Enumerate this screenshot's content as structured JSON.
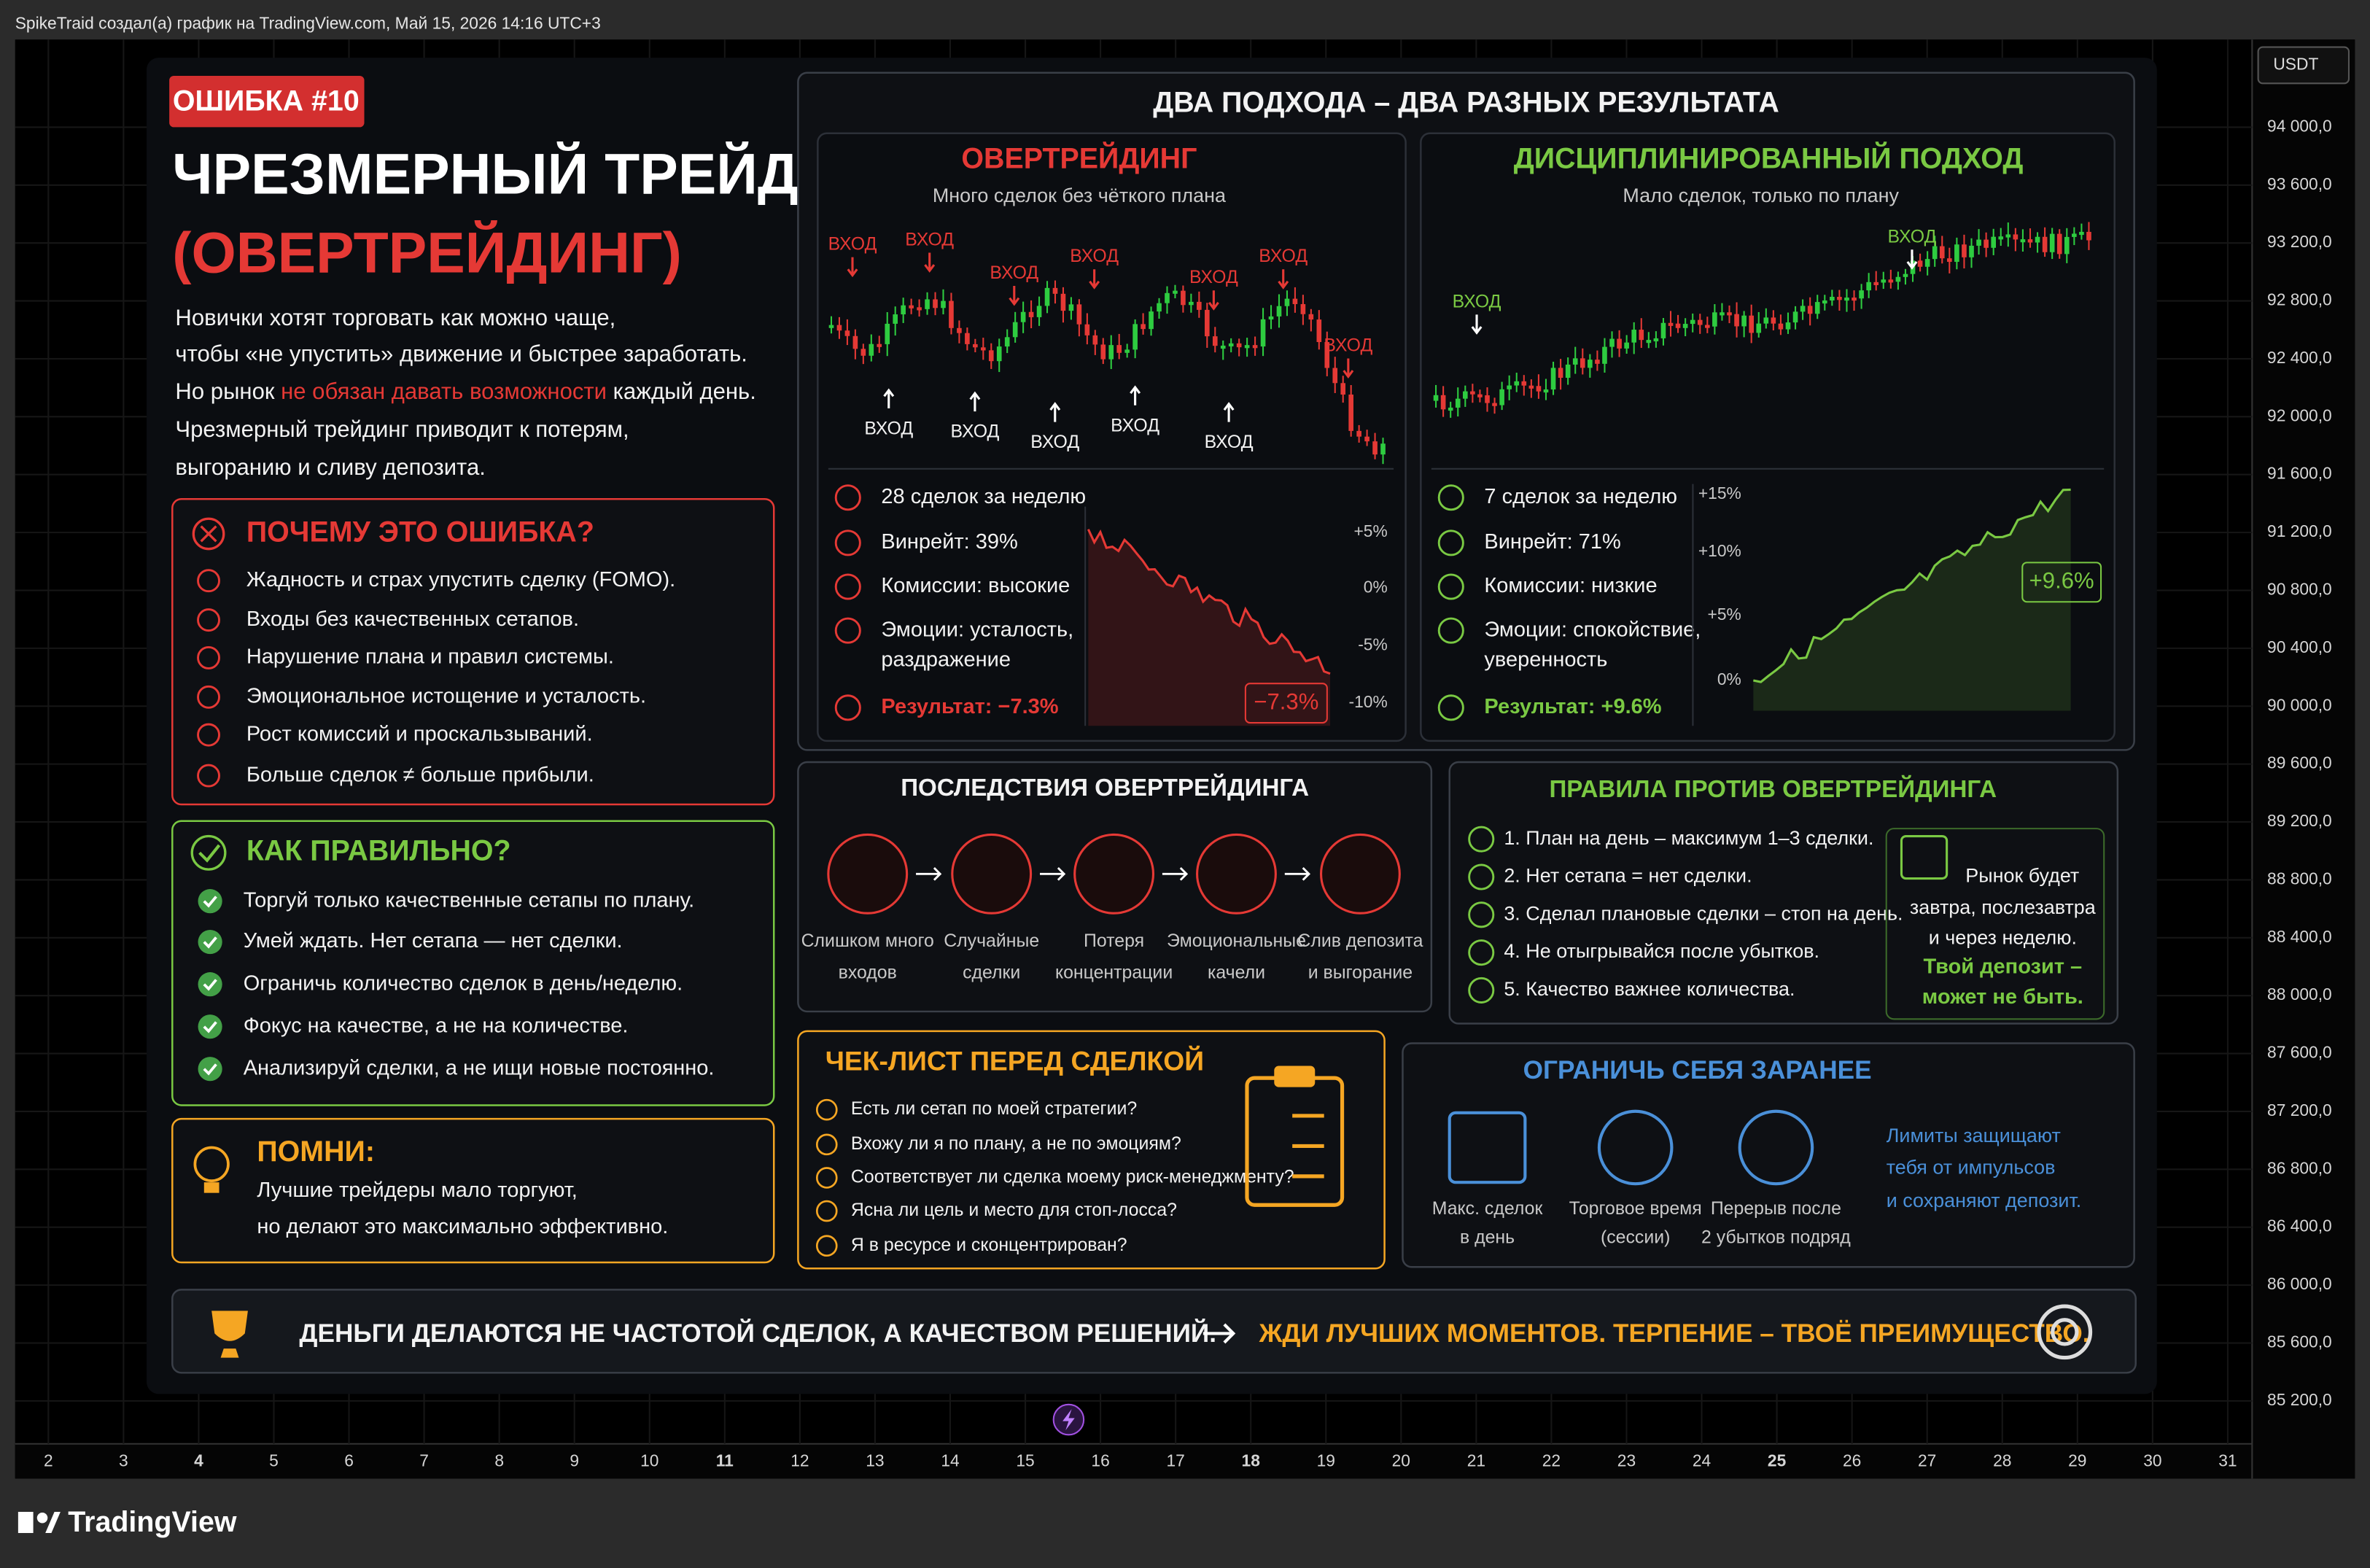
{
  "top_bar": {
    "attribution": "SpikeTraid создал(а) график на TradingView.com, Май 15, 2026 14:16 UTC+3"
  },
  "price_axis": {
    "currency": "USDT",
    "labels": [
      "94 000,0",
      "93 600,0",
      "93 200,0",
      "92 800,0",
      "92 400,0",
      "92 000,0",
      "91 600,0",
      "91 200,0",
      "90 800,0",
      "90 400,0",
      "90 000,0",
      "89 600,0",
      "89 200,0",
      "88 800,0",
      "88 400,0",
      "88 000,0",
      "87 600,0",
      "87 200,0",
      "86 800,0",
      "86 400,0",
      "86 000,0",
      "85 600,0",
      "85 200,0"
    ]
  },
  "time_axis": {
    "labels": [
      "2",
      "3",
      "4",
      "5",
      "6",
      "7",
      "8",
      "9",
      "10",
      "11",
      "12",
      "13",
      "14",
      "15",
      "16",
      "17",
      "18",
      "19",
      "20",
      "21",
      "22",
      "23",
      "24",
      "25",
      "26",
      "27",
      "28",
      "29",
      "30",
      "31"
    ]
  },
  "footer": {
    "brand": "TradingView"
  },
  "infographic": {
    "badge": "ОШИБКА #10",
    "title": [
      "ЧРЕЗМЕРНЫЙ ТРЕЙДИНГ",
      "(ОВЕРТРЕЙДИНГ)"
    ],
    "intro": [
      "Новички хотят торговать как можно чаще,",
      "чтобы «не упустить» движение и быстрее заработать.",
      {
        "before": "Но рынок ",
        "highlight": "не обязан давать возможности",
        "after": " каждый день."
      },
      "Чрезмерный трейдинг приводит к потерям,",
      "выгоранию и сливу депозита."
    ],
    "why": {
      "heading": "ПОЧЕМУ ЭТО ОШИБКА?",
      "items": [
        "Жадность и страх упустить сделку (FOMO).",
        "Входы без качественных сетапов.",
        "Нарушение плана и правил системы.",
        "Эмоциональное истощение и усталость.",
        "Рост комиссий и проскальзываний.",
        "Больше сделок ≠ больше прибыли."
      ]
    },
    "how": {
      "heading": "КАК ПРАВИЛЬНО?",
      "items": [
        "Торгуй только качественные сетапы по плану.",
        "Умей ждать. Нет сетапа — нет сделки.",
        "Ограничь количество сделок в день/неделю.",
        "Фокус на качестве, а не на количестве.",
        "Анализируй сделки, а не ищи новые постоянно."
      ]
    },
    "remember": {
      "heading": "ПОМНИ:",
      "lines": [
        "Лучшие трейдеры мало торгуют,",
        "но делают это максимально эффективно."
      ]
    },
    "comparison": {
      "heading": "ДВА ПОДХОДА – ДВА РАЗНЫХ РЕЗУЛЬТАТА",
      "entry_label": "ВХОД",
      "overtrading": {
        "title": "ОВЕРТРЕЙДИНГ",
        "subtitle": "Много сделок без чёткого плана",
        "stats": [
          "28 сделок за неделю",
          "Винрейт: 39%",
          "Комиссии: высокие",
          [
            "Эмоции: усталость,",
            "раздражение"
          ],
          "Результат: −7.3%"
        ],
        "chart_ticks": [
          "+5%",
          "0%",
          "-5%",
          "-10%"
        ],
        "result_badge": "−7.3%"
      },
      "disciplined": {
        "title": "ДИСЦИПЛИНИРОВАННЫЙ ПОДХОД",
        "subtitle": "Мало сделок, только по плану",
        "stats": [
          "7 сделок за неделю",
          "Винрейт: 71%",
          "Комиссии: низкие",
          [
            "Эмоции: спокойствие,",
            "уверенность"
          ],
          "Результат: +9.6%"
        ],
        "chart_ticks": [
          "+15%",
          "+10%",
          "+5%",
          "0%"
        ],
        "result_badge": "+9.6%"
      }
    },
    "consequences": {
      "heading": "ПОСЛЕДСТВИЯ ОВЕРТРЕЙДИНГА",
      "items": [
        [
          "Слишком много",
          "входов"
        ],
        [
          "Случайные",
          "сделки"
        ],
        [
          "Потеря",
          "концентрации"
        ],
        [
          "Эмоциональные",
          "качели"
        ],
        [
          "Слив депозита",
          "и выгорание"
        ]
      ]
    },
    "rules": {
      "heading": "ПРАВИЛА ПРОТИВ ОВЕРТРЕЙДИНГА",
      "items": [
        "1. План на день – максимум 1–3 сделки.",
        "2. Нет сетапа = нет сделки.",
        "3. Сделал плановые сделки – стоп на день.",
        "4. Не отыгрывайся после убытков.",
        "5. Качество важнее количества."
      ],
      "note": [
        "Рынок будет",
        "завтра, послезавтра",
        "и через неделю."
      ],
      "note_emphasis": [
        "Твой депозит –",
        "может не быть."
      ]
    },
    "checklist": {
      "heading": "ЧЕК-ЛИСТ ПЕРЕД СДЕЛКОЙ",
      "items": [
        "Есть ли сетап по моей стратегии?",
        "Вхожу ли я по плану, а не по эмоциям?",
        "Соответствует ли сделка моему риск-менеджменту?",
        "Ясна ли цель и место для стоп-лосса?",
        "Я в ресурсе и сконцентрирован?"
      ]
    },
    "limits": {
      "heading": "ОГРАНИЧЬ СЕБЯ ЗАРАНЕЕ",
      "items": [
        [
          "Макс. сделок",
          "в день"
        ],
        [
          "Торговое время",
          "(сессии)"
        ],
        [
          "Перерыв после",
          "2 убытков подряд"
        ]
      ],
      "note": [
        "Лимиты защищают",
        "тебя от импульсов",
        "и сохраняют депозит."
      ]
    },
    "banner": {
      "left": "ДЕНЬГИ ДЕЛАЮТСЯ НЕ ЧАСТОТОЙ СДЕЛОК, А КАЧЕСТВОМ РЕШЕНИЙ.",
      "right": "ЖДИ ЛУЧШИХ МОМЕНТОВ. ТЕРПЕНИЕ – ТВОЁ ПРЕИМУЩЕСТВО."
    }
  }
}
